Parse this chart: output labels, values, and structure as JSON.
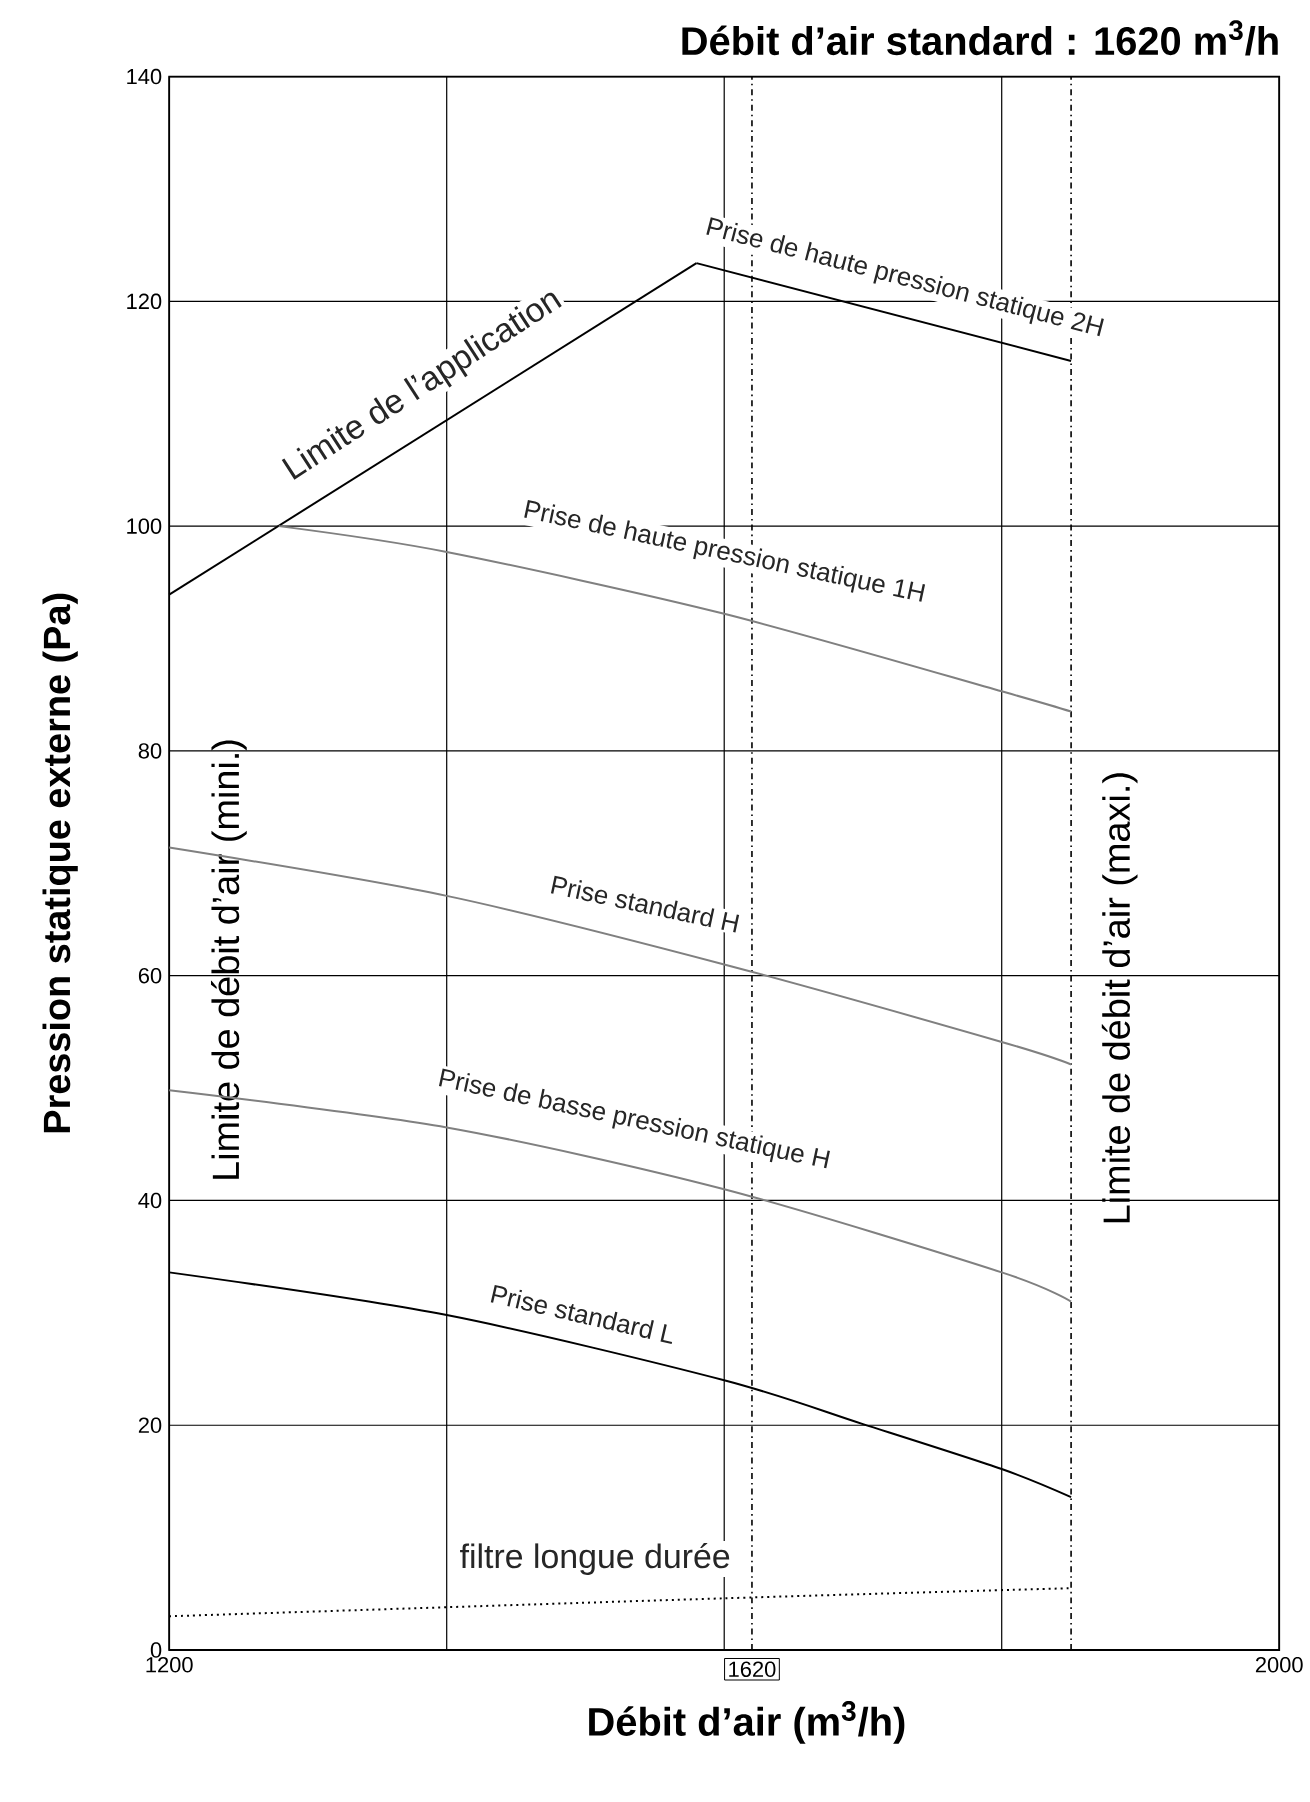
{
  "chart_data": {
    "type": "line",
    "title": "Débit d’air standard : 1620 m$^{3}$/h",
    "xlabel": "Débit d’air (m$^{3}$/h)",
    "ylabel": "Pression statique externe (Pa)",
    "xlim": [
      1200,
      2000
    ],
    "ylim": [
      0,
      140
    ],
    "xticks": [
      1200,
      {
        "value": 1400,
        "label": null
      },
      {
        "value": 1600,
        "label": null
      },
      {
        "value": 1800,
        "label": null
      },
      2000
    ],
    "yticks": [
      0,
      20,
      40,
      60,
      80,
      100,
      120,
      140
    ],
    "grid": true,
    "series": [
      {
        "name": "Limite de l’application",
        "color": "#000000",
        "x": [
          1200,
          1580
        ],
        "values": [
          93.9,
          123.4
        ]
      },
      {
        "name": "Prise de haute pression statique 2H",
        "color": "#000000",
        "x": [
          1580,
          1850
        ],
        "values": [
          123.4,
          114.7
        ]
      },
      {
        "name": "Prise de haute pression statique 1H",
        "color": "#808080",
        "x": [
          1279,
          1400,
          1600,
          1800,
          1850
        ],
        "values": [
          100,
          97.7,
          92.2,
          85.3,
          83.5
        ]
      },
      {
        "name": "Prise standard H",
        "color": "#808080",
        "x": [
          1200,
          1400,
          1600,
          1800,
          1850
        ],
        "values": [
          71.4,
          67.1,
          61.0,
          54.1,
          52.1
        ]
      },
      {
        "name": "Prise de basse pression statique H",
        "color": "#808080",
        "x": [
          1200,
          1400,
          1600,
          1800,
          1850
        ],
        "values": [
          49.8,
          46.5,
          41.0,
          33.6,
          31.0
        ]
      },
      {
        "name": "Prise standard L",
        "color": "#000000",
        "x": [
          1200,
          1400,
          1600,
          1700,
          1800,
          1850
        ],
        "values": [
          33.6,
          29.8,
          24.0,
          20.1,
          16.1,
          13.6
        ]
      },
      {
        "name": "filtre longue durée",
        "color": "#000000",
        "x": [
          1200,
          1600,
          1850
        ],
        "values": [
          3.0,
          4.6,
          5.5
        ],
        "line_style": "dotted"
      }
    ],
    "annotations": [
      "Limite de débit d’air (mini.)"
    ],
    "ref_lines": [
      {
        "axis": "x",
        "value": 1620,
        "label": "1620",
        "line_style": "dashdot"
      },
      {
        "axis": "x",
        "value": 1850,
        "label": "Limite de débit d’air (maxi.)",
        "line_style": "dashdot"
      }
    ]
  }
}
